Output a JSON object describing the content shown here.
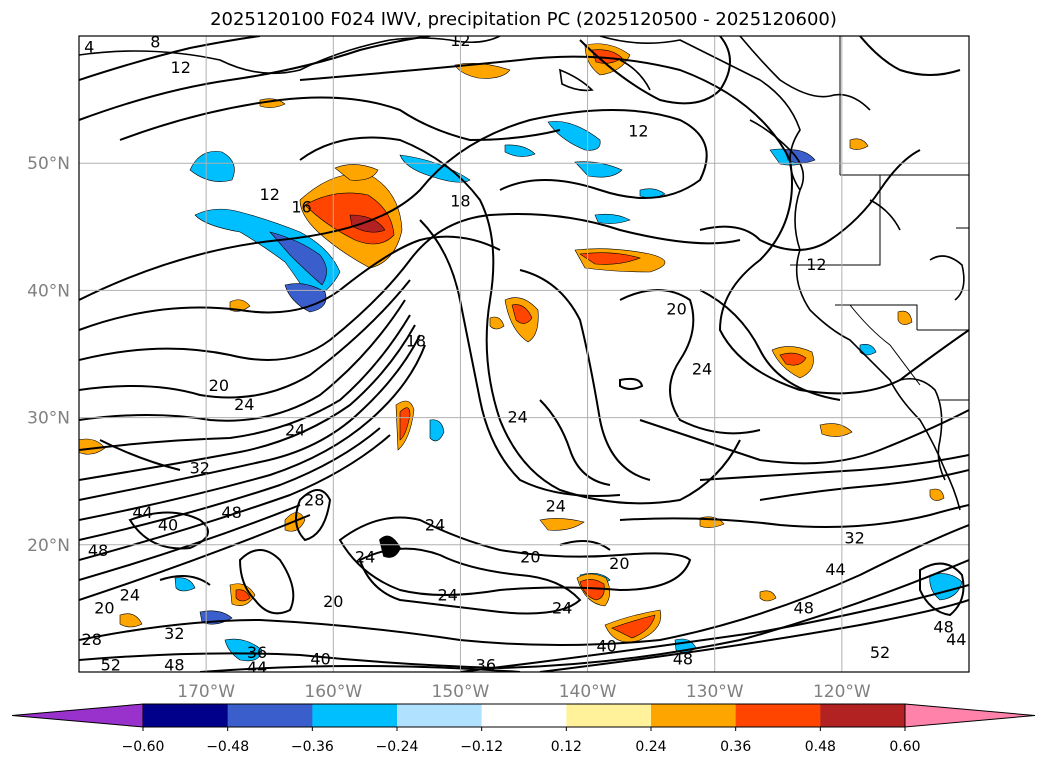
{
  "title": "2025120100 F024 IWV, precipitation PC (2025120500 - 2025120600)",
  "map": {
    "lon_range": [
      180,
      110
    ],
    "lat_range": [
      10,
      60
    ],
    "lat_ticks": [
      {
        "lat": 20,
        "label": "20°N"
      },
      {
        "lat": 30,
        "label": "30°N"
      },
      {
        "lat": 40,
        "label": "40°N"
      },
      {
        "lat": 50,
        "label": "50°N"
      }
    ],
    "lon_ticks": [
      {
        "lon": 170,
        "label": "170°W"
      },
      {
        "lon": 160,
        "label": "160°W"
      },
      {
        "lon": 150,
        "label": "150°W"
      },
      {
        "lon": 140,
        "label": "140°W"
      },
      {
        "lon": 130,
        "label": "130°W"
      },
      {
        "lon": 120,
        "label": "120°W"
      }
    ],
    "grid": true,
    "contour_labels": [
      {
        "text": "4",
        "lon": 179.2,
        "lat": 59.1
      },
      {
        "text": "8",
        "lon": 174.0,
        "lat": 59.5
      },
      {
        "text": "12",
        "lon": 172.0,
        "lat": 57.5
      },
      {
        "text": "12",
        "lon": 150.0,
        "lat": 59.6
      },
      {
        "text": "12",
        "lon": 165.0,
        "lat": 47.5
      },
      {
        "text": "16",
        "lon": 162.5,
        "lat": 46.5
      },
      {
        "text": "18",
        "lon": 150.0,
        "lat": 47.0
      },
      {
        "text": "12",
        "lon": 136.0,
        "lat": 52.5
      },
      {
        "text": "12",
        "lon": 122.0,
        "lat": 42.0
      },
      {
        "text": "20",
        "lon": 133.0,
        "lat": 38.5
      },
      {
        "text": "24",
        "lon": 131.0,
        "lat": 33.8
      },
      {
        "text": "18",
        "lon": 153.5,
        "lat": 36.0
      },
      {
        "text": "24",
        "lon": 145.5,
        "lat": 30.0
      },
      {
        "text": "20",
        "lon": 169.0,
        "lat": 32.5
      },
      {
        "text": "24",
        "lon": 167.0,
        "lat": 31.0
      },
      {
        "text": "24",
        "lon": 163.0,
        "lat": 29.0
      },
      {
        "text": "32",
        "lon": 170.5,
        "lat": 26.0
      },
      {
        "text": "44",
        "lon": 175.0,
        "lat": 22.5
      },
      {
        "text": "40",
        "lon": 173.0,
        "lat": 21.5
      },
      {
        "text": "48",
        "lon": 168.0,
        "lat": 22.5
      },
      {
        "text": "28",
        "lon": 161.5,
        "lat": 23.5
      },
      {
        "text": "48",
        "lon": 178.5,
        "lat": 19.5
      },
      {
        "text": "24",
        "lon": 152.0,
        "lat": 21.5
      },
      {
        "text": "24",
        "lon": 142.5,
        "lat": 23.0
      },
      {
        "text": "20",
        "lon": 144.5,
        "lat": 19.0
      },
      {
        "text": "20",
        "lon": 137.5,
        "lat": 18.5
      },
      {
        "text": "24",
        "lon": 157.5,
        "lat": 19.0
      },
      {
        "text": "20",
        "lon": 178.0,
        "lat": 15.0
      },
      {
        "text": "24",
        "lon": 176.0,
        "lat": 16.0
      },
      {
        "text": "20",
        "lon": 160.0,
        "lat": 15.5
      },
      {
        "text": "24",
        "lon": 151.0,
        "lat": 16.0
      },
      {
        "text": "24",
        "lon": 142.0,
        "lat": 15.0
      },
      {
        "text": "32",
        "lon": 172.5,
        "lat": 13.0
      },
      {
        "text": "28",
        "lon": 179.0,
        "lat": 12.5
      },
      {
        "text": "36",
        "lon": 166.0,
        "lat": 11.5
      },
      {
        "text": "40",
        "lon": 161.0,
        "lat": 11.0
      },
      {
        "text": "40",
        "lon": 138.5,
        "lat": 12.0
      },
      {
        "text": "36",
        "lon": 148.0,
        "lat": 10.5
      },
      {
        "text": "48",
        "lon": 172.5,
        "lat": 10.5
      },
      {
        "text": "52",
        "lon": 177.5,
        "lat": 10.5
      },
      {
        "text": "44",
        "lon": 166.0,
        "lat": 10.3
      },
      {
        "text": "32",
        "lon": 119.0,
        "lat": 20.5
      },
      {
        "text": "44",
        "lon": 120.5,
        "lat": 18.0
      },
      {
        "text": "48",
        "lon": 123.0,
        "lat": 15.0
      },
      {
        "text": "52",
        "lon": 117.0,
        "lat": 11.5
      },
      {
        "text": "48",
        "lon": 112.0,
        "lat": 13.5
      },
      {
        "text": "44",
        "lon": 111.0,
        "lat": 12.5
      },
      {
        "text": "48",
        "lon": 132.5,
        "lat": 11.0
      }
    ]
  },
  "colorbar": {
    "colors": [
      "#9932cc",
      "#00008b",
      "#3a5fcd",
      "#00bfff",
      "#b0e2ff",
      "#ffffff",
      "#fff29a",
      "#ffa500",
      "#ff4500",
      "#b22222",
      "#ff82ab"
    ],
    "tick_labels": [
      "−0.60",
      "−0.48",
      "−0.36",
      "−0.24",
      "−0.12",
      "0.12",
      "0.24",
      "0.36",
      "0.48",
      "0.60"
    ]
  }
}
